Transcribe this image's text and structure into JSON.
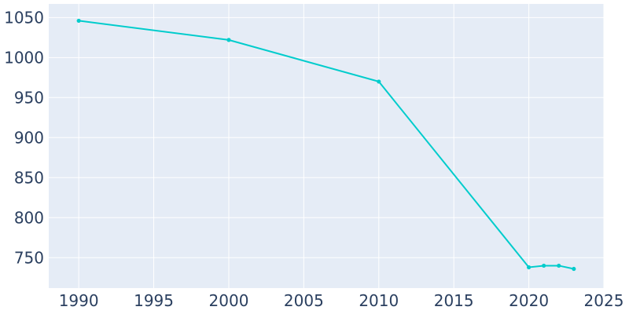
{
  "chart_data": {
    "type": "line",
    "title": "",
    "xlabel": "",
    "ylabel": "",
    "x": [
      1990,
      2000,
      2010,
      2020,
      2021,
      2022,
      2023
    ],
    "series": [
      {
        "values": [
          1046,
          1022,
          970,
          738,
          740,
          740,
          736
        ]
      }
    ],
    "xlim": [
      1988,
      2025
    ],
    "ylim": [
      712,
      1067
    ],
    "xticks": [
      1990,
      1995,
      2000,
      2005,
      2010,
      2015,
      2020,
      2025
    ],
    "yticks": [
      750,
      800,
      850,
      900,
      950,
      1000,
      1050
    ],
    "xtick_labels": [
      "1990",
      "1995",
      "2000",
      "2005",
      "2010",
      "2015",
      "2020",
      "2025"
    ],
    "ytick_labels": [
      "750",
      "800",
      "850",
      "900",
      "950",
      "1000",
      "1050"
    ],
    "grid": true,
    "legend": "none",
    "colors": {
      "line": "#00cccc",
      "plot_bg": "#e5ecf6",
      "grid": "#ffffff",
      "tick_text": "#2a3f5f"
    }
  }
}
